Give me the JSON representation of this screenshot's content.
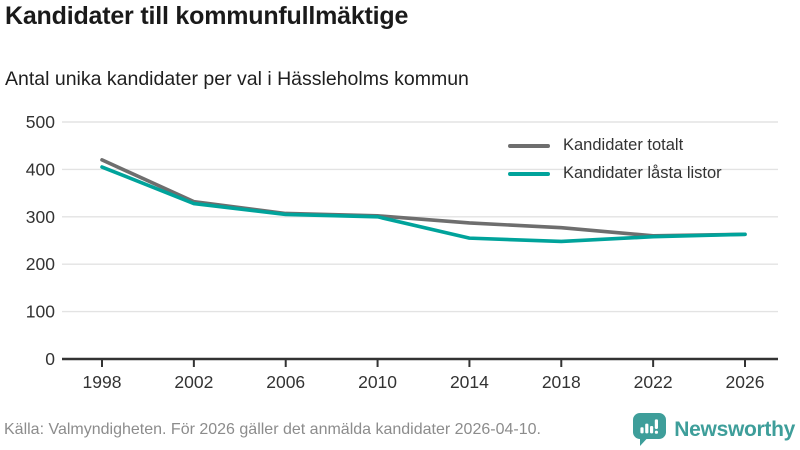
{
  "header": {
    "title": "Kandidater till kommunfullmäktige",
    "subtitle": "Antal unika kandidater per val i Hässleholms kommun"
  },
  "chart_data": {
    "type": "line",
    "title": "Kandidater till kommunfullmäktige",
    "subtitle": "Antal unika kandidater per val i Hässleholms kommun",
    "categories": [
      "1998",
      "2002",
      "2006",
      "2010",
      "2014",
      "2018",
      "2022",
      "2026"
    ],
    "series": [
      {
        "name": "Kandidater totalt",
        "color": "#6e6e6e",
        "values": [
          420,
          332,
          307,
          302,
          287,
          277,
          260,
          263
        ]
      },
      {
        "name": "Kandidater låsta listor",
        "color": "#00a39b",
        "values": [
          405,
          328,
          305,
          300,
          255,
          248,
          258,
          263
        ]
      }
    ],
    "xlabel": "",
    "ylabel": "",
    "ylim": [
      0,
      500
    ],
    "yticks": [
      0,
      100,
      200,
      300,
      400,
      500
    ],
    "grid": true,
    "legend_position": "top-right"
  },
  "colors": {
    "grid": "#e3e3e3",
    "axis": "#333333",
    "tick_label": "#333333",
    "brand_teal": "#3e9e9a"
  },
  "footer": {
    "source": "Källa: Valmyndigheten. För 2026 gäller det anmälda kandidater 2026-04-10.",
    "brand": "Newsworthy"
  }
}
